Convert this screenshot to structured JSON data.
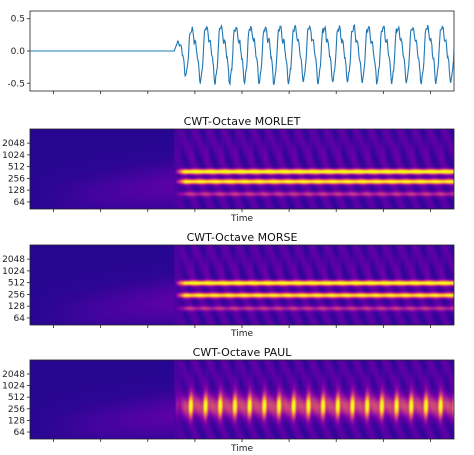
{
  "colors": {
    "signal_line": "#1f77b4",
    "background": "#ffffff",
    "colormap": [
      "#0d0887",
      "#41049d",
      "#6a00a8",
      "#8f0da4",
      "#b12a90",
      "#cc4778",
      "#e16462",
      "#f2844b",
      "#fca636",
      "#fcce25",
      "#f0f921"
    ]
  },
  "chart_data": [
    {
      "type": "line",
      "title": "",
      "xlabel": "",
      "ylabel": "",
      "ylim": [
        -0.62,
        0.62
      ],
      "yticks": [
        "0.5",
        "0.0",
        "-0.5"
      ],
      "yticks_values": [
        0.5,
        0.0,
        -0.5
      ],
      "grid": false,
      "series": [
        {
          "onset_fraction": 0.34,
          "cycles_after_onset": 19,
          "amplitude": 0.38,
          "baseline_before_onset": 0.0
        }
      ]
    },
    {
      "type": "heatmap",
      "title": "CWT-Octave MORLET",
      "xlabel": "Time",
      "ylabel": "",
      "yticks": [
        "2048",
        "1024",
        "512",
        "256",
        "128",
        "64"
      ],
      "colormap": "plasma",
      "features": [
        {
          "scale": 380,
          "intensity": 1.0
        },
        {
          "scale": 210,
          "intensity": 0.9
        },
        {
          "scale": 100,
          "intensity": 0.3
        }
      ]
    },
    {
      "type": "heatmap",
      "title": "CWT-Octave MORSE",
      "xlabel": "Time",
      "ylabel": "",
      "yticks": [
        "2048",
        "1024",
        "512",
        "256",
        "128",
        "64"
      ],
      "colormap": "plasma",
      "features": [
        {
          "scale": 500,
          "intensity": 0.95
        },
        {
          "scale": 240,
          "intensity": 0.85
        },
        {
          "scale": 110,
          "intensity": 0.3
        }
      ]
    },
    {
      "type": "heatmap",
      "title": "CWT-Octave PAUL",
      "xlabel": "Time",
      "ylabel": "",
      "yticks": [
        "2048",
        "1024",
        "512",
        "256",
        "128",
        "64"
      ],
      "colormap": "plasma",
      "features": [
        {
          "scale": 300,
          "intensity": 1.0,
          "pulsed": true,
          "pulses": 19
        }
      ]
    }
  ]
}
